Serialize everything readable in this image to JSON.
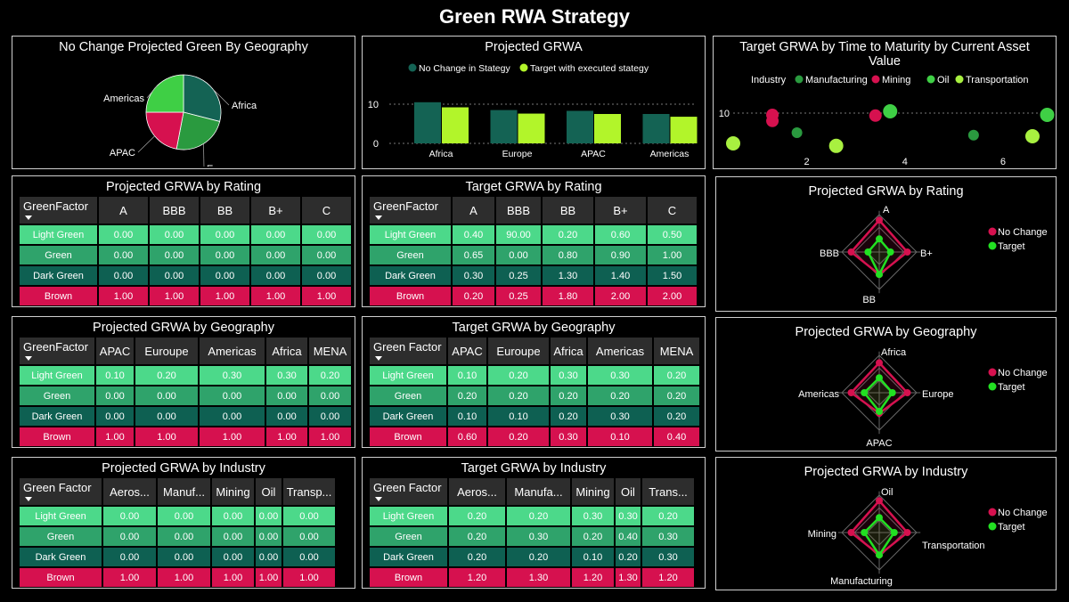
{
  "page": {
    "title": "Green RWA Strategy"
  },
  "colors": {
    "light_green": "#4cd98a",
    "green": "#2fa36b",
    "dark_green": "#0e6052",
    "brown": "#d6114f",
    "bar_nochange": "#146354",
    "bar_target": "#b2f52a",
    "header": "#2d2d2d"
  },
  "panels": {
    "pie": {
      "title": "No Change Projected Green By Geography",
      "chart_data": {
        "type": "pie",
        "labels": [
          "Africa",
          "Europe",
          "APAC",
          "Americas"
        ],
        "values": [
          29,
          24,
          22,
          25
        ],
        "colors": [
          "#146354",
          "#2a9a3f",
          "#d6114f",
          "#3fcf45"
        ]
      }
    },
    "bar": {
      "title": "Projected GRWA",
      "chart_data": {
        "type": "bar",
        "categories": [
          "Africa",
          "Europe",
          "APAC",
          "Americas"
        ],
        "series": [
          {
            "name": "No Change in Stategy",
            "values": [
              10.5,
              8.5,
              8.3,
              7.5
            ],
            "color": "#146354"
          },
          {
            "name": "Target with executed stategy",
            "values": [
              9.2,
              7.6,
              7.5,
              6.8
            ],
            "color": "#b2f52a"
          }
        ],
        "yticks": [
          0,
          10
        ],
        "ylim": [
          0,
          12
        ]
      }
    },
    "scatter": {
      "title": "Target GRWA by Time to Maturity by Current Asset Value",
      "legend_title": "Industry",
      "chart_data": {
        "type": "scatter",
        "series": [
          {
            "name": "Manufacturing",
            "color": "#2a9a3f",
            "points": [
              [
                1.8,
                4.5
              ],
              [
                5.4,
                3.8
              ]
            ]
          },
          {
            "name": "Mining",
            "color": "#d6114f",
            "points": [
              [
                1.3,
                9.5
              ],
              [
                1.3,
                7.8
              ],
              [
                3.4,
                9.3
              ]
            ]
          },
          {
            "name": "Oil",
            "color": "#3fcf45",
            "points": [
              [
                3.7,
                10.5
              ],
              [
                6.9,
                9.5
              ]
            ]
          },
          {
            "name": "Transportation",
            "color": "#a8f040",
            "points": [
              [
                0.5,
                1.5
              ],
              [
                2.6,
                0.8
              ],
              [
                6.6,
                3.5
              ]
            ]
          }
        ],
        "xticks": [
          2,
          4,
          6
        ],
        "yticks": [
          10
        ],
        "xlim": [
          0.5,
          7
        ],
        "ylim": [
          -3,
          16
        ]
      }
    },
    "rating_proj": {
      "title": "Projected GRWA by Rating",
      "columns": [
        "GreenFactor",
        "A",
        "BBB",
        "BB",
        "B+",
        "C"
      ],
      "rows": [
        [
          "Light Green",
          "0.00",
          "0.00",
          "0.00",
          "0.00",
          "0.00"
        ],
        [
          "Green",
          "0.00",
          "0.00",
          "0.00",
          "0.00",
          "0.00"
        ],
        [
          "Dark Green",
          "0.00",
          "0.00",
          "0.00",
          "0.00",
          "0.00"
        ],
        [
          "Brown",
          "1.00",
          "1.00",
          "1.00",
          "1.00",
          "1.00"
        ]
      ]
    },
    "rating_target": {
      "title": "Target GRWA by Rating",
      "columns": [
        "GreenFactor",
        "A",
        "BBB",
        "BB",
        "B+",
        "C"
      ],
      "rows": [
        [
          "Light Green",
          "0.40",
          "90.00",
          "0.20",
          "0.60",
          "0.50"
        ],
        [
          "Green",
          "0.65",
          "0.00",
          "0.80",
          "0.90",
          "1.00"
        ],
        [
          "Dark Green",
          "0.30",
          "0.25",
          "1.30",
          "1.40",
          "1.50"
        ],
        [
          "Brown",
          "0.20",
          "0.25",
          "1.80",
          "2.00",
          "2.00"
        ]
      ]
    },
    "geo_proj": {
      "title": "Projected GRWA by Geography",
      "columns": [
        "GreenFactor",
        "APAC",
        "Euroupe",
        "Americas",
        "Africa",
        "MENA"
      ],
      "rows": [
        [
          "Light Green",
          "0.10",
          "0.20",
          "0.30",
          "0.30",
          "0.20"
        ],
        [
          "Green",
          "0.00",
          "0.00",
          "0.00",
          "0.00",
          "0.00"
        ],
        [
          "Dark Green",
          "0.00",
          "0.00",
          "0.00",
          "0.00",
          "0.00"
        ],
        [
          "Brown",
          "1.00",
          "1.00",
          "1.00",
          "1.00",
          "1.00"
        ]
      ]
    },
    "geo_target": {
      "title": "Target GRWA by Geography",
      "columns": [
        "Green Factor",
        "APAC",
        "Euroupe",
        "Africa",
        "Americas",
        "MENA"
      ],
      "rows": [
        [
          "Light Green",
          "0.10",
          "0.20",
          "0.30",
          "0.30",
          "0.20"
        ],
        [
          "Green",
          "0.20",
          "0.20",
          "0.20",
          "0.20",
          "0.20"
        ],
        [
          "Dark Green",
          "0.10",
          "0.10",
          "0.20",
          "0.30",
          "0.20"
        ],
        [
          "Brown",
          "0.60",
          "0.20",
          "0.30",
          "0.10",
          "0.40"
        ]
      ]
    },
    "ind_proj": {
      "title": "Projected GRWA by Industry",
      "columns": [
        "Green Factor",
        "Aeros...",
        "Manuf...",
        "Mining",
        "Oil",
        "Transp..."
      ],
      "rows": [
        [
          "Light Green",
          "0.00",
          "0.00",
          "0.00",
          "0.00",
          "0.00"
        ],
        [
          "Green",
          "0.00",
          "0.00",
          "0.00",
          "0.00",
          "0.00"
        ],
        [
          "Dark Green",
          "0.00",
          "0.00",
          "0.00",
          "0.00",
          "0.00"
        ],
        [
          "Brown",
          "1.00",
          "1.00",
          "1.00",
          "1.00",
          "1.00"
        ]
      ]
    },
    "ind_target": {
      "title": "Target GRWA by Industry",
      "columns": [
        "Green Factor",
        "Aeros...",
        "Manufa...",
        "Mining",
        "Oil",
        "Trans..."
      ],
      "rows": [
        [
          "Light Green",
          "0.20",
          "0.20",
          "0.30",
          "0.30",
          "0.20"
        ],
        [
          "Green",
          "0.20",
          "0.30",
          "0.20",
          "0.40",
          "0.30"
        ],
        [
          "Dark Green",
          "0.20",
          "0.20",
          "0.10",
          "0.20",
          "0.30"
        ],
        [
          "Brown",
          "1.20",
          "1.30",
          "1.20",
          "1.30",
          "1.20"
        ]
      ]
    },
    "radar_rating": {
      "title": "Projected GRWA by Rating",
      "chart_data": {
        "type": "radar",
        "axes": [
          "A",
          "B+",
          "BB",
          "BBB"
        ],
        "series": [
          {
            "name": "No Change",
            "color": "#d6114f",
            "values": [
              0.85,
              0.75,
              0.6,
              0.75
            ]
          },
          {
            "name": "Target",
            "color": "#22e022",
            "values": [
              0.35,
              0.3,
              0.6,
              0.3
            ]
          }
        ]
      }
    },
    "radar_geo": {
      "title": "Projected GRWA by Geography",
      "chart_data": {
        "type": "radar",
        "axes": [
          "Africa",
          "Europe",
          "APAC",
          "Americas"
        ],
        "series": [
          {
            "name": "No Change",
            "color": "#d6114f",
            "values": [
              0.8,
              0.75,
              0.55,
              0.75
            ]
          },
          {
            "name": "Target",
            "color": "#22e022",
            "values": [
              0.4,
              0.35,
              0.5,
              0.4
            ]
          }
        ]
      }
    },
    "radar_ind": {
      "title": "Projected GRWA by Industry",
      "chart_data": {
        "type": "radar",
        "axes": [
          "Oil",
          "Transportation",
          "Manufacturing",
          "Mining"
        ],
        "series": [
          {
            "name": "No Change",
            "color": "#d6114f",
            "values": [
              0.85,
              0.75,
              0.6,
              0.75
            ]
          },
          {
            "name": "Target",
            "color": "#22e022",
            "values": [
              0.4,
              0.4,
              0.6,
              0.4
            ]
          }
        ]
      }
    }
  }
}
